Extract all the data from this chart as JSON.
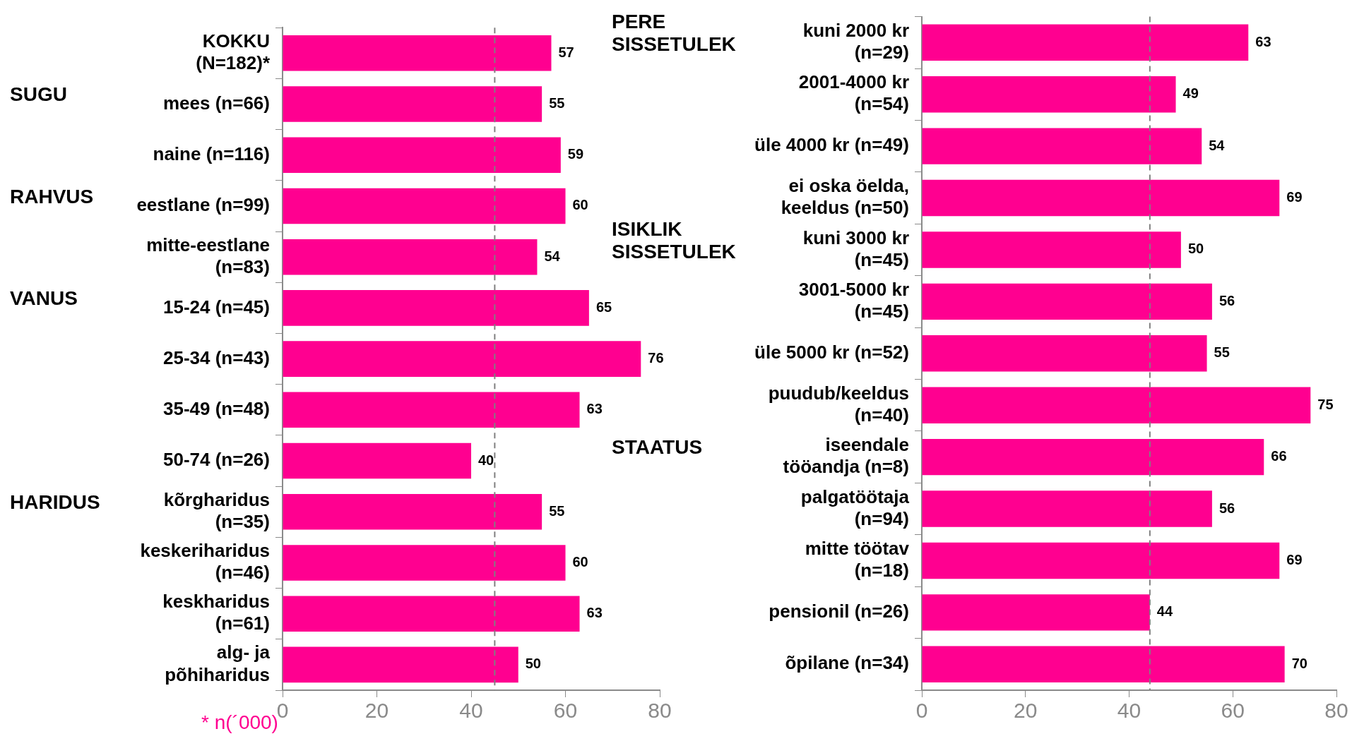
{
  "chart_data": [
    {
      "type": "bar",
      "orientation": "horizontal",
      "categories": [
        "KOKKU (N=182)*",
        "mees (n=66)",
        "naine (n=116)",
        "eestlane (n=99)",
        "mitte-eestlane (n=83)",
        "15-24 (n=45)",
        "25-34 (n=43)",
        "35-49 (n=48)",
        "50-74 (n=26)",
        "kõrgharidus (n=35)",
        "keskeriharidus (n=46)",
        "keskharidus (n=61)",
        "alg- ja põhiharidus"
      ],
      "values": [
        57,
        55,
        59,
        60,
        54,
        65,
        76,
        63,
        40,
        55,
        60,
        63,
        50
      ],
      "color": "#ff0090",
      "data_labels": true,
      "xlim": [
        0,
        80
      ],
      "xticks": [
        0,
        20,
        40,
        60,
        80
      ],
      "ref_lines": [
        {
          "axis": "x",
          "value": 45,
          "color": "#808080",
          "line_style": "dashed"
        }
      ],
      "annotations": [
        "SUGU",
        "RAHVUS",
        "VANUS",
        "HARIDUS",
        "* n(´000)"
      ]
    },
    {
      "type": "bar",
      "orientation": "horizontal",
      "categories": [
        "kuni 2000 kr (n=29)",
        "2001-4000 kr (n=54)",
        "üle 4000 kr (n=49)",
        "ei oska öelda, keeldus (n=50)",
        "kuni 3000 kr (n=45)",
        "3001-5000 kr (n=45)",
        "üle 5000 kr (n=52)",
        "puudub/keeldus (n=40)",
        "iseendale tööandja (n=8)",
        "palgatöötaja (n=94)",
        "mitte töötav (n=18)",
        "pensionil (n=26)",
        "õpilane (n=34)"
      ],
      "values": [
        63,
        49,
        54,
        69,
        50,
        56,
        55,
        75,
        66,
        56,
        69,
        44,
        70
      ],
      "color": "#ff0090",
      "data_labels": true,
      "xlim": [
        0,
        80
      ],
      "xticks": [
        0,
        20,
        40,
        60,
        80
      ],
      "ref_lines": [
        {
          "axis": "x",
          "value": 44,
          "color": "#808080",
          "line_style": "dashed"
        }
      ],
      "annotations": [
        "PERE SISSETULEK",
        "ISIKLIK SISSETULEK",
        "STAATUS"
      ]
    }
  ]
}
